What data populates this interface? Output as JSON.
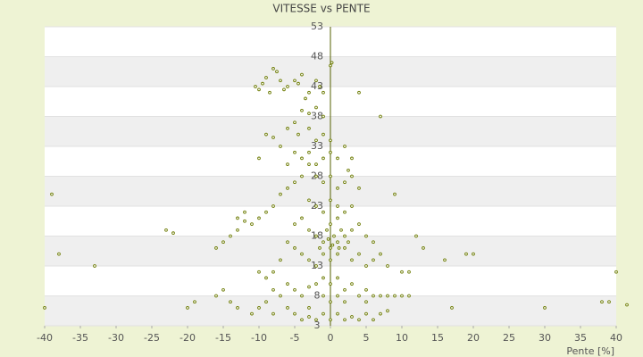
{
  "chart_data": {
    "type": "scatter",
    "title": "VITESSE vs PENTE",
    "x_label": "Pente [%]",
    "color": "#6b7a00",
    "xlim": [
      -40,
      40
    ],
    "xticks": [
      -40,
      -35,
      -30,
      -25,
      -20,
      -15,
      -10,
      -5,
      0,
      5,
      10,
      15,
      20,
      25,
      30,
      35,
      40
    ],
    "ylim": [
      3,
      53
    ],
    "yticks": [
      3,
      8,
      13,
      18,
      23,
      28,
      33,
      38,
      43,
      48,
      53
    ],
    "grid": true,
    "x": [
      -10.5,
      -10,
      -9.5,
      -9,
      -8,
      -7.5,
      -7,
      -6,
      -5,
      -4.5,
      -4,
      -3,
      -2,
      -1.5,
      -1,
      0,
      0.2,
      -6.5,
      -8.5,
      -3.5,
      -4,
      -3,
      -2,
      -1,
      -5,
      -6,
      -4.5,
      -3,
      -2,
      -1,
      0,
      -9,
      -8,
      -7,
      -10,
      -6,
      -5,
      -4,
      -3,
      -2,
      -1,
      0,
      1,
      2,
      3,
      2.5,
      -3,
      -4,
      -5,
      -2,
      -1,
      0,
      1,
      2,
      3,
      4,
      -6,
      -7,
      -8,
      -9,
      -10,
      -11,
      -12,
      -13,
      -14,
      -15,
      -16,
      -5,
      -4,
      -3,
      -2,
      -1,
      0,
      1,
      2,
      3,
      4,
      5,
      6,
      -1,
      0,
      1,
      2,
      3,
      4,
      5,
      6,
      7,
      8,
      -2,
      -3,
      -4,
      -5,
      -6,
      -7,
      -8,
      -9,
      -10,
      0,
      1,
      2,
      -1,
      -2,
      0,
      1,
      -3,
      3,
      0.5,
      1.5,
      -0.5,
      0.3,
      -0.3,
      1.2,
      2.5,
      -1.5,
      -6,
      -5,
      -4,
      -3,
      -2,
      -1,
      0,
      1,
      2,
      3,
      4,
      5,
      6,
      7,
      8,
      9,
      10,
      11,
      -7,
      -8,
      -9,
      -10,
      -11,
      -5,
      -4,
      -3,
      -2,
      -1,
      0,
      1,
      2,
      3,
      4,
      5,
      6,
      -8,
      -6,
      7,
      8,
      -3,
      0,
      1,
      2,
      -1,
      5,
      -39,
      -38,
      -40,
      -33,
      -23,
      -22,
      -20,
      -19,
      -15,
      -14,
      -13,
      -16,
      7,
      30,
      39,
      40,
      41.5,
      38,
      17,
      16,
      19,
      20,
      10,
      11,
      13,
      9,
      4,
      -12,
      -13,
      12
    ],
    "y": [
      43,
      42.5,
      43.5,
      44.5,
      46,
      45.5,
      44,
      43,
      44,
      43.5,
      45,
      42,
      44,
      43,
      42,
      46.5,
      47,
      42.5,
      42,
      41,
      39,
      38.5,
      39.5,
      38,
      37,
      36,
      35,
      36,
      34,
      35,
      34,
      35,
      34.5,
      33,
      31,
      30,
      32,
      31,
      32,
      30,
      31,
      32,
      31,
      33,
      31,
      29,
      30,
      28,
      27,
      28,
      27,
      28,
      26,
      27,
      28,
      26,
      26,
      25,
      23,
      22,
      21,
      20,
      20.5,
      19,
      18,
      17,
      16,
      20,
      21,
      19,
      18,
      17,
      16,
      17,
      18,
      19,
      20,
      18,
      17,
      15,
      14,
      15,
      16,
      14,
      15,
      13,
      14,
      15,
      13,
      13,
      14,
      15,
      16,
      17,
      14,
      12,
      11,
      12,
      20,
      21,
      22,
      22,
      23,
      24,
      23,
      24,
      23,
      18,
      19,
      19,
      16.5,
      17.5,
      16,
      17,
      16,
      10,
      9,
      8,
      9.5,
      10,
      11,
      10,
      11,
      9,
      10,
      8,
      9,
      8,
      8,
      8,
      8,
      8,
      8,
      8,
      9,
      7,
      6,
      5,
      5,
      4,
      4.5,
      4,
      5,
      4,
      5,
      4,
      4.5,
      4,
      5,
      4,
      5,
      6,
      5,
      5.5,
      6,
      7,
      8,
      7,
      8,
      7,
      25,
      15,
      6,
      13,
      19,
      18.5,
      6,
      7,
      9,
      7,
      6,
      8,
      38,
      6,
      7,
      12,
      6.5,
      7,
      6,
      14,
      15,
      15,
      12,
      12,
      16,
      25,
      42,
      22,
      21,
      18
    ]
  }
}
